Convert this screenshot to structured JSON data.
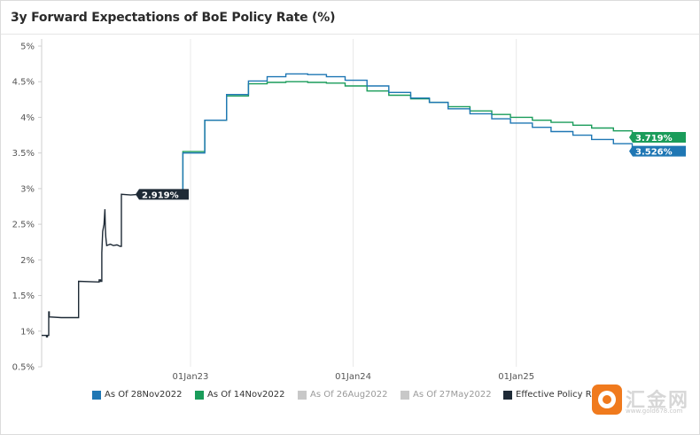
{
  "chart_data": {
    "type": "line",
    "title": "3y Forward Expectations of BoE Policy Rate (%)",
    "y_ticks": [
      "5%",
      "4.5%",
      "4%",
      "3.5%",
      "3%",
      "2.5%",
      "2%",
      "1.5%",
      "1%",
      "0.5%"
    ],
    "ylim": [
      0.5,
      5.0
    ],
    "x_ticks": [
      {
        "label": "01Jan23",
        "date": "2023-01-01"
      },
      {
        "label": "01Jan24",
        "date": "2024-01-01"
      },
      {
        "label": "01Jan25",
        "date": "2025-01-01"
      }
    ],
    "xlim": [
      "2022-02-01",
      "2025-10-01"
    ],
    "grid": {
      "vertical": true,
      "horizontal": false
    },
    "legend_position": "bottom",
    "series": [
      {
        "name": "As Of 28Nov2022",
        "color": "#1f77b4",
        "end_label": "3.526%",
        "end_value": 3.526,
        "points": [
          [
            "2022-11-28",
            2.919
          ],
          [
            "2022-12-15",
            3.5
          ],
          [
            "2023-02-02",
            3.96
          ],
          [
            "2023-03-23",
            4.32
          ],
          [
            "2023-05-11",
            4.51
          ],
          [
            "2023-06-22",
            4.57
          ],
          [
            "2023-08-03",
            4.61
          ],
          [
            "2023-09-21",
            4.6
          ],
          [
            "2023-11-02",
            4.57
          ],
          [
            "2023-12-14",
            4.52
          ],
          [
            "2024-02-01",
            4.44
          ],
          [
            "2024-03-21",
            4.35
          ],
          [
            "2024-05-09",
            4.27
          ],
          [
            "2024-06-20",
            4.21
          ],
          [
            "2024-08-01",
            4.12
          ],
          [
            "2024-09-19",
            4.05
          ],
          [
            "2024-11-07",
            3.98
          ],
          [
            "2024-12-19",
            3.92
          ],
          [
            "2025-02-06",
            3.86
          ],
          [
            "2025-03-20",
            3.8
          ],
          [
            "2025-05-08",
            3.75
          ],
          [
            "2025-06-19",
            3.69
          ],
          [
            "2025-08-07",
            3.63
          ],
          [
            "2025-09-18",
            3.57
          ],
          [
            "2025-10-01",
            3.526
          ]
        ]
      },
      {
        "name": "As Of 14Nov2022",
        "color": "#1a9c5a",
        "end_label": "3.719%",
        "end_value": 3.719,
        "points": [
          [
            "2022-11-28",
            2.919
          ],
          [
            "2022-12-15",
            3.52
          ],
          [
            "2023-02-02",
            3.96
          ],
          [
            "2023-03-23",
            4.3
          ],
          [
            "2023-05-11",
            4.47
          ],
          [
            "2023-06-22",
            4.49
          ],
          [
            "2023-08-03",
            4.5
          ],
          [
            "2023-09-21",
            4.49
          ],
          [
            "2023-11-02",
            4.48
          ],
          [
            "2023-12-14",
            4.44
          ],
          [
            "2024-02-01",
            4.37
          ],
          [
            "2024-03-21",
            4.31
          ],
          [
            "2024-05-09",
            4.26
          ],
          [
            "2024-06-20",
            4.21
          ],
          [
            "2024-08-01",
            4.15
          ],
          [
            "2024-09-19",
            4.09
          ],
          [
            "2024-11-07",
            4.04
          ],
          [
            "2024-12-19",
            4.0
          ],
          [
            "2025-02-06",
            3.96
          ],
          [
            "2025-03-20",
            3.93
          ],
          [
            "2025-05-08",
            3.89
          ],
          [
            "2025-06-19",
            3.85
          ],
          [
            "2025-08-07",
            3.81
          ],
          [
            "2025-09-18",
            3.76
          ],
          [
            "2025-10-01",
            3.719
          ]
        ]
      },
      {
        "name": "As Of 26Aug2022",
        "color": "#c0c0c0",
        "hidden": true,
        "points": []
      },
      {
        "name": "As Of 27May2022",
        "color": "#c0c0c0",
        "hidden": true,
        "points": []
      },
      {
        "name": "Effective Policy Rate",
        "color": "#1e2a36",
        "end_label": "2.919%",
        "end_value": 2.919,
        "points": [
          [
            "2022-02-01",
            0.94
          ],
          [
            "2022-02-12",
            0.94
          ],
          [
            "2022-02-12",
            0.92
          ],
          [
            "2022-02-14",
            0.92
          ],
          [
            "2022-02-14",
            0.94
          ],
          [
            "2022-02-17",
            0.94
          ],
          [
            "2022-02-17",
            1.27
          ],
          [
            "2022-02-18",
            1.27
          ],
          [
            "2022-02-18",
            1.2
          ],
          [
            "2022-03-17",
            1.19
          ],
          [
            "2022-04-25",
            1.19
          ],
          [
            "2022-04-25",
            1.7
          ],
          [
            "2022-06-10",
            1.69
          ],
          [
            "2022-06-10",
            1.72
          ],
          [
            "2022-06-13",
            1.72
          ],
          [
            "2022-06-13",
            1.7
          ],
          [
            "2022-06-16",
            1.7
          ],
          [
            "2022-06-16",
            2.1
          ],
          [
            "2022-06-18",
            2.4
          ],
          [
            "2022-06-21",
            2.5
          ],
          [
            "2022-06-23",
            2.71
          ],
          [
            "2022-06-24",
            2.45
          ],
          [
            "2022-06-25",
            2.32
          ],
          [
            "2022-06-27",
            2.2
          ],
          [
            "2022-07-05",
            2.22
          ],
          [
            "2022-07-12",
            2.2
          ],
          [
            "2022-07-20",
            2.21
          ],
          [
            "2022-07-27",
            2.19
          ],
          [
            "2022-07-30",
            2.19
          ],
          [
            "2022-07-30",
            2.92
          ],
          [
            "2022-08-20",
            2.91
          ],
          [
            "2022-09-30",
            2.93
          ],
          [
            "2022-10-31",
            2.92
          ],
          [
            "2022-11-28",
            2.919
          ]
        ]
      }
    ]
  },
  "watermark": {
    "text": "汇金网",
    "url": "www.gold678.com"
  }
}
